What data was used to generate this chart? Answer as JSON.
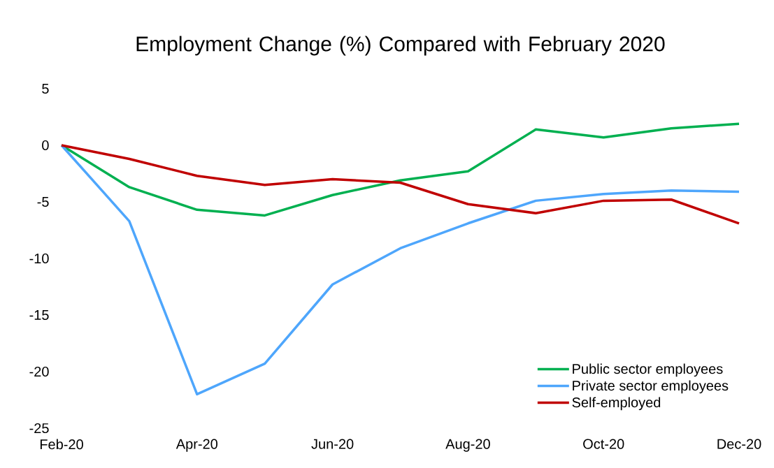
{
  "chart_data": {
    "type": "line",
    "title": "Employment Change (%) Compared with February 2020",
    "categories": [
      "Feb-20",
      null,
      "Apr-20",
      null,
      "Jun-20",
      null,
      "Aug-20",
      null,
      "Oct-20",
      null,
      "Dec-20"
    ],
    "series": [
      {
        "name": "Public sector employees",
        "color": "#00b050",
        "values": [
          0,
          -3.7,
          -5.7,
          -6.2,
          -4.4,
          -3.1,
          -2.3,
          1.4,
          0.7,
          1.5,
          1.9
        ]
      },
      {
        "name": "Private sector employees",
        "color": "#4ea6fc",
        "values": [
          0,
          -6.7,
          -22.0,
          -19.3,
          -12.3,
          -9.1,
          -6.9,
          -4.9,
          -4.3,
          -4.0,
          -4.1
        ]
      },
      {
        "name": "Self-employed",
        "color": "#c00000",
        "values": [
          0,
          -1.2,
          -2.7,
          -3.5,
          -3.0,
          -3.3,
          -5.2,
          -6.0,
          -4.9,
          -4.8,
          -6.9
        ]
      }
    ],
    "ylim": [
      -25,
      5
    ],
    "yticks": [
      -25,
      -20,
      -15,
      -10,
      -5,
      0,
      5
    ],
    "grid": false,
    "legend": "bottom right",
    "marker": "none",
    "line_style": "solid"
  }
}
